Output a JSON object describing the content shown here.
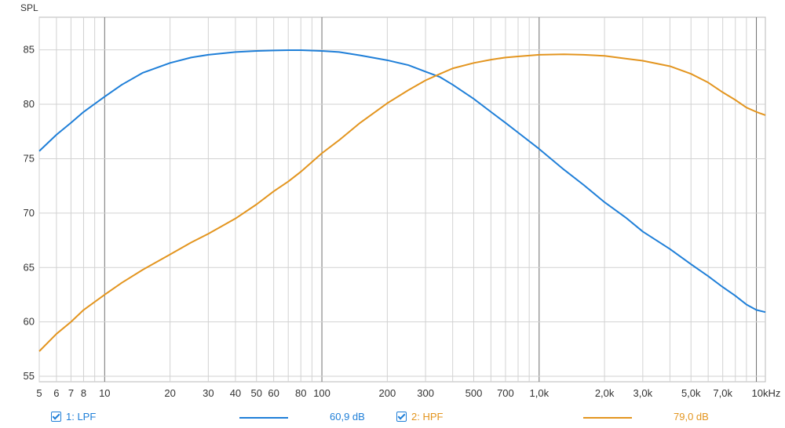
{
  "chart_data": {
    "type": "line",
    "title": "",
    "ylabel": "SPL",
    "xlabel": "",
    "x_scale": "log",
    "xlim": [
      5,
      11000
    ],
    "ylim": [
      54.5,
      88
    ],
    "y_ticks": [
      55,
      60,
      65,
      70,
      75,
      80,
      85
    ],
    "x_ticks": [
      {
        "v": 5,
        "label": "5"
      },
      {
        "v": 6,
        "label": "6"
      },
      {
        "v": 7,
        "label": "7"
      },
      {
        "v": 8,
        "label": "8"
      },
      {
        "v": 10,
        "label": "10"
      },
      {
        "v": 20,
        "label": "20"
      },
      {
        "v": 30,
        "label": "30"
      },
      {
        "v": 40,
        "label": "40"
      },
      {
        "v": 50,
        "label": "50"
      },
      {
        "v": 60,
        "label": "60"
      },
      {
        "v": 80,
        "label": "80"
      },
      {
        "v": 100,
        "label": "100"
      },
      {
        "v": 200,
        "label": "200"
      },
      {
        "v": 300,
        "label": "300"
      },
      {
        "v": 500,
        "label": "500"
      },
      {
        "v": 700,
        "label": "700"
      },
      {
        "v": 1000,
        "label": "1,0k"
      },
      {
        "v": 2000,
        "label": "2,0k"
      },
      {
        "v": 3000,
        "label": "3,0k"
      },
      {
        "v": 5000,
        "label": "5,0k"
      },
      {
        "v": 7000,
        "label": "7,0k"
      },
      {
        "v": 10000,
        "label": "10kHz"
      }
    ],
    "grid": true,
    "series": [
      {
        "name": "1: LPF",
        "color": "#1f7fd8",
        "cursor_value": "60,9 dB",
        "points": [
          [
            5,
            75.7
          ],
          [
            6,
            77.2
          ],
          [
            7,
            78.3
          ],
          [
            8,
            79.3
          ],
          [
            10,
            80.7
          ],
          [
            12,
            81.8
          ],
          [
            15,
            82.9
          ],
          [
            20,
            83.8
          ],
          [
            25,
            84.3
          ],
          [
            30,
            84.55
          ],
          [
            40,
            84.8
          ],
          [
            50,
            84.9
          ],
          [
            60,
            84.95
          ],
          [
            70,
            84.97
          ],
          [
            80,
            84.97
          ],
          [
            100,
            84.9
          ],
          [
            120,
            84.8
          ],
          [
            150,
            84.5
          ],
          [
            200,
            84.05
          ],
          [
            250,
            83.6
          ],
          [
            300,
            83.0
          ],
          [
            350,
            82.5
          ],
          [
            400,
            81.8
          ],
          [
            500,
            80.5
          ],
          [
            600,
            79.3
          ],
          [
            700,
            78.3
          ],
          [
            800,
            77.4
          ],
          [
            1000,
            75.9
          ],
          [
            1300,
            74.0
          ],
          [
            1600,
            72.6
          ],
          [
            2000,
            71.0
          ],
          [
            2500,
            69.6
          ],
          [
            3000,
            68.3
          ],
          [
            4000,
            66.7
          ],
          [
            5000,
            65.3
          ],
          [
            6000,
            64.2
          ],
          [
            7000,
            63.2
          ],
          [
            8000,
            62.4
          ],
          [
            9000,
            61.6
          ],
          [
            10000,
            61.1
          ],
          [
            11000,
            60.9
          ]
        ]
      },
      {
        "name": "2: HPF",
        "color": "#e3951f",
        "cursor_value": "79,0 dB",
        "points": [
          [
            5,
            57.3
          ],
          [
            6,
            58.9
          ],
          [
            7,
            60.0
          ],
          [
            8,
            61.1
          ],
          [
            10,
            62.5
          ],
          [
            12,
            63.6
          ],
          [
            15,
            64.8
          ],
          [
            20,
            66.2
          ],
          [
            25,
            67.3
          ],
          [
            30,
            68.1
          ],
          [
            40,
            69.5
          ],
          [
            50,
            70.8
          ],
          [
            60,
            72.0
          ],
          [
            70,
            72.9
          ],
          [
            80,
            73.8
          ],
          [
            100,
            75.5
          ],
          [
            120,
            76.7
          ],
          [
            150,
            78.3
          ],
          [
            200,
            80.1
          ],
          [
            250,
            81.3
          ],
          [
            300,
            82.2
          ],
          [
            350,
            82.8
          ],
          [
            400,
            83.3
          ],
          [
            500,
            83.8
          ],
          [
            600,
            84.1
          ],
          [
            700,
            84.3
          ],
          [
            800,
            84.4
          ],
          [
            1000,
            84.55
          ],
          [
            1300,
            84.6
          ],
          [
            1600,
            84.55
          ],
          [
            2000,
            84.45
          ],
          [
            2500,
            84.2
          ],
          [
            3000,
            84.0
          ],
          [
            4000,
            83.5
          ],
          [
            5000,
            82.8
          ],
          [
            6000,
            82.0
          ],
          [
            7000,
            81.1
          ],
          [
            8000,
            80.4
          ],
          [
            9000,
            79.7
          ],
          [
            10000,
            79.3
          ],
          [
            11000,
            79.0
          ]
        ]
      }
    ]
  }
}
